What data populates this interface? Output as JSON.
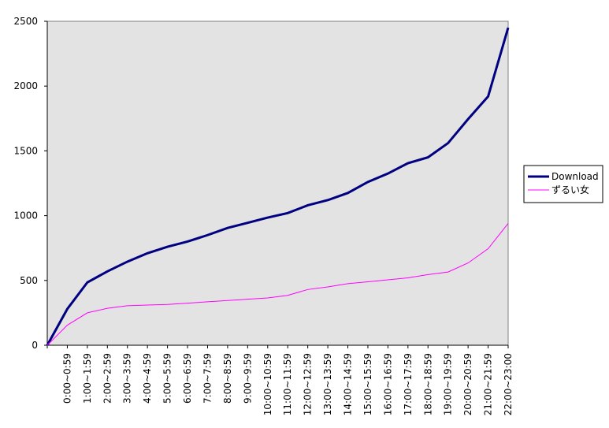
{
  "chart_data": {
    "type": "line",
    "categories": [
      null,
      "0:00~0:59",
      "1:00~1:59",
      "2:00~2:59",
      "3:00~3:59",
      "4:00~4:59",
      "5:00~5:59",
      "6:00~6:59",
      "7:00~7:59",
      "8:00~8:59",
      "9:00~9:59",
      "10:00~10:59",
      "11:00~11:59",
      "12:00~12:59",
      "13:00~13:59",
      "14:00~14:59",
      "15:00~15:59",
      "16:00~16:59",
      "17:00~17:59",
      "18:00~18:59",
      "19:00~19:59",
      "20:00~20:59",
      "21:00~21:59",
      "22:00~23:00"
    ],
    "series": [
      {
        "name": "Download",
        "color": "#000080",
        "values": [
          0,
          280,
          485,
          570,
          645,
          710,
          760,
          800,
          850,
          905,
          945,
          985,
          1020,
          1080,
          1120,
          1175,
          1260,
          1325,
          1405,
          1450,
          1560,
          1745,
          1920,
          2450
        ]
      },
      {
        "name": "ずるい女",
        "color": "#ff00ff",
        "values": [
          0,
          155,
          250,
          285,
          305,
          310,
          315,
          325,
          335,
          345,
          355,
          365,
          385,
          430,
          450,
          475,
          490,
          505,
          520,
          545,
          565,
          635,
          745,
          940
        ]
      }
    ],
    "ylim": [
      0,
      2500
    ],
    "yticks": [
      0,
      500,
      1000,
      1500,
      2000,
      2500
    ],
    "grid": false,
    "legend": "right"
  }
}
